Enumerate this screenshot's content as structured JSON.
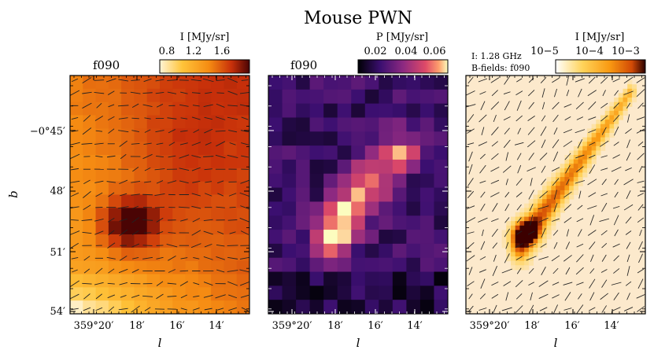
{
  "figure": {
    "title": "Mouse PWN"
  },
  "chart_data": [
    {
      "type": "heatmap",
      "panel_label": "f090",
      "colormap": "YlOrRd-afmhot",
      "colorbar": {
        "label": "I [MJy/sr]",
        "ticks": [
          "0.8",
          "1.2",
          "1.6"
        ],
        "range": [
          0.6,
          1.9
        ]
      },
      "xlabel": "l",
      "ylabel": "b",
      "xticks": [
        "359°20′",
        "18′",
        "16′",
        "14′"
      ],
      "yticks": [
        "−0°45′",
        "48′",
        "51′",
        "54′"
      ],
      "overlay": "polarization vectors",
      "peak": {
        "l_arcmin_offset": "≈17.6′",
        "b": "≈−0°49.7′",
        "value": 1.85
      }
    },
    {
      "type": "heatmap",
      "panel_label": "f090",
      "colormap": "magma",
      "colorbar": {
        "label": "P [MJy/sr]",
        "ticks": [
          "0.02",
          "0.04",
          "0.06"
        ],
        "range": [
          0.0,
          0.07
        ]
      },
      "xlabel": "l",
      "xticks": [
        "359°20′",
        "18′",
        "16′",
        "14′"
      ],
      "peak": {
        "value": 0.068
      }
    },
    {
      "type": "heatmap",
      "panel_label": "",
      "colormap": "afmhot_r (log)",
      "colorbar": {
        "label": "I [MJy/sr]",
        "ticks": [
          "10−5",
          "10−4",
          "10−3"
        ],
        "scale": "log",
        "range": [
          1e-05,
          0.002
        ]
      },
      "annotations": [
        "I: 1.28 GHz",
        "B-fields: f090"
      ],
      "xlabel": "l",
      "xticks": [
        "359°20′",
        "18′",
        "16′",
        "14′"
      ],
      "overlay": "magnetic field vectors",
      "feature": "linear tail from (18′, 50.5′) to (14′, 44′)"
    }
  ]
}
